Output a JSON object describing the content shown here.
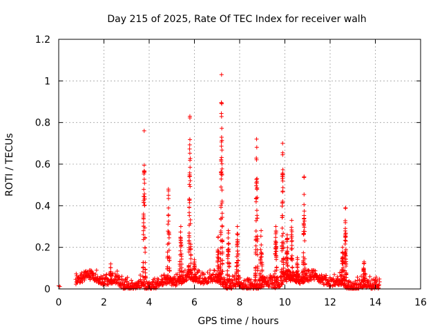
{
  "chart_data": {
    "type": "scatter",
    "title": "Day 215 of 2025, Rate Of TEC Index for receiver walh",
    "xlabel": "GPS time / hours",
    "ylabel": "ROTI / TECUs",
    "xlim": [
      0,
      16
    ],
    "ylim": [
      0,
      1.2
    ],
    "xticks": [
      0,
      2,
      4,
      6,
      8,
      10,
      12,
      14,
      16
    ],
    "xtick_labels": [
      "0",
      "2",
      "4",
      "6",
      "8",
      "10",
      "12",
      "14",
      "16"
    ],
    "yticks": [
      0,
      0.2,
      0.4,
      0.6,
      0.8,
      1.0,
      1.2
    ],
    "ytick_labels": [
      "0",
      "0.2",
      "0.4",
      "0.6",
      "0.8",
      "1",
      "1.2"
    ],
    "grid": true,
    "marker": "+",
    "color": "#ff0000",
    "series": [
      {
        "name": "ROTI",
        "baseline": {
          "x_start": 0.75,
          "x_end": 14.2,
          "typical_y": [
            0.0,
            0.06
          ]
        },
        "isolated_points": [
          [
            0.0,
            0.015
          ],
          [
            0.05,
            0.012
          ]
        ],
        "spikes": [
          {
            "center": 3.78,
            "peak": 0.76,
            "width": 0.12
          },
          {
            "center": 4.85,
            "peak": 0.48,
            "width": 0.14
          },
          {
            "center": 5.4,
            "peak": 0.3,
            "width": 0.15
          },
          {
            "center": 5.8,
            "peak": 0.83,
            "width": 0.12
          },
          {
            "center": 6.0,
            "peak": 0.14,
            "width": 0.1
          },
          {
            "center": 7.2,
            "peak": 1.03,
            "width": 0.1
          },
          {
            "center": 7.05,
            "peak": 0.25,
            "width": 0.1
          },
          {
            "center": 7.5,
            "peak": 0.28,
            "width": 0.12
          },
          {
            "center": 7.9,
            "peak": 0.3,
            "width": 0.12
          },
          {
            "center": 8.75,
            "peak": 0.72,
            "width": 0.12
          },
          {
            "center": 8.95,
            "peak": 0.28,
            "width": 0.14
          },
          {
            "center": 9.6,
            "peak": 0.3,
            "width": 0.12
          },
          {
            "center": 9.9,
            "peak": 0.7,
            "width": 0.1
          },
          {
            "center": 10.1,
            "peak": 0.26,
            "width": 0.1
          },
          {
            "center": 10.3,
            "peak": 0.33,
            "width": 0.1
          },
          {
            "center": 10.55,
            "peak": 0.15,
            "width": 0.14
          },
          {
            "center": 10.85,
            "peak": 0.54,
            "width": 0.1
          },
          {
            "center": 12.55,
            "peak": 0.2,
            "width": 0.1
          },
          {
            "center": 12.68,
            "peak": 0.39,
            "width": 0.08
          },
          {
            "center": 13.5,
            "peak": 0.13,
            "width": 0.12
          },
          {
            "center": 2.3,
            "peak": 0.12,
            "width": 0.05
          }
        ]
      }
    ]
  }
}
